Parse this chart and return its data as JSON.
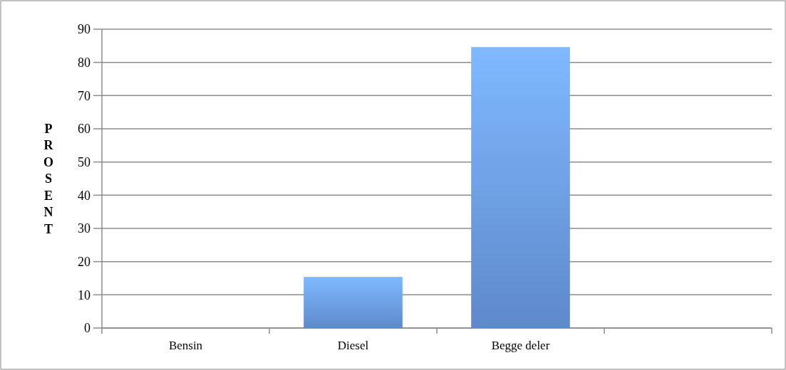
{
  "chart_data": {
    "type": "bar",
    "ylabel": "PROSENT",
    "categories": [
      "Bensin",
      "Diesel",
      "Begge deler",
      null
    ],
    "values": [
      0,
      15.4,
      84.6,
      null
    ],
    "color": "#6a9be6",
    "ylim": [
      0,
      90
    ],
    "yticks": [
      0,
      10,
      20,
      30,
      40,
      50,
      60,
      70,
      80,
      90
    ],
    "grid": "y"
  }
}
